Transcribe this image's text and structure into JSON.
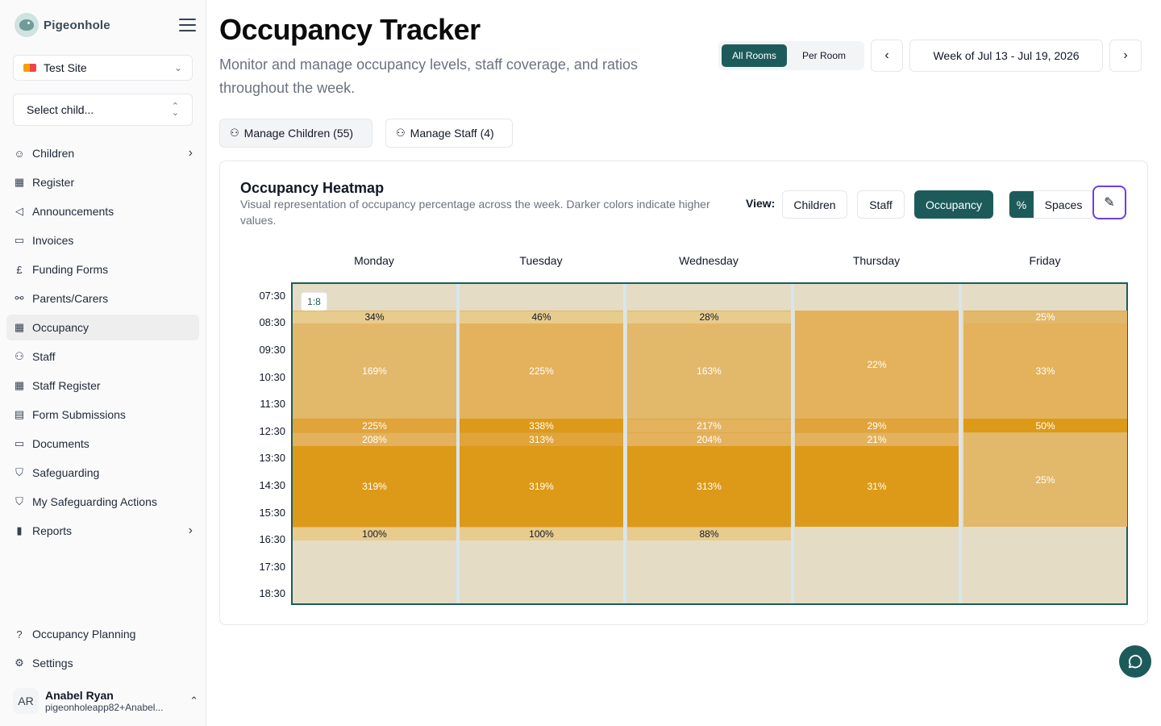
{
  "sidebar": {
    "brand": "Pigeonhole",
    "site": "Test Site",
    "child_placeholder": "Select child...",
    "items": [
      {
        "label": "Children",
        "icon": "baby-face-icon",
        "glyph": "☺",
        "arrow": true
      },
      {
        "label": "Register",
        "icon": "calendar-check-icon",
        "glyph": "▦"
      },
      {
        "label": "Announcements",
        "icon": "megaphone-icon",
        "glyph": "◁"
      },
      {
        "label": "Invoices",
        "icon": "wallet-icon",
        "glyph": "▭"
      },
      {
        "label": "Funding Forms",
        "icon": "pound-icon",
        "glyph": "£"
      },
      {
        "label": "Parents/Carers",
        "icon": "route-icon",
        "glyph": "⚯"
      },
      {
        "label": "Occupancy",
        "icon": "grid-icon",
        "glyph": "▦",
        "active": true
      },
      {
        "label": "Staff",
        "icon": "users-icon",
        "glyph": "⚇"
      },
      {
        "label": "Staff Register",
        "icon": "calendar-icon",
        "glyph": "▦"
      },
      {
        "label": "Form Submissions",
        "icon": "file-text-icon",
        "glyph": "▤"
      },
      {
        "label": "Documents",
        "icon": "folder-icon",
        "glyph": "▭"
      },
      {
        "label": "Safeguarding",
        "icon": "shield-icon",
        "glyph": "⛉"
      },
      {
        "label": "My Safeguarding Actions",
        "icon": "shield-alert-icon",
        "glyph": "⛉"
      },
      {
        "label": "Reports",
        "icon": "bar-chart-icon",
        "glyph": "▮",
        "arrow": true
      }
    ],
    "bottom_items": [
      {
        "label": "Occupancy Planning",
        "icon": "help-circle-icon",
        "glyph": "?"
      },
      {
        "label": "Settings",
        "icon": "gear-icon",
        "glyph": "⚙"
      }
    ],
    "user": {
      "initials": "AR",
      "name": "Anabel Ryan",
      "email": "pigeonholeapp82+Anabel..."
    }
  },
  "header": {
    "title": "Occupancy Tracker",
    "subtitle": "Monitor and manage occupancy levels, staff coverage, and ratios throughout the week.",
    "room_toggle": {
      "all": "All Rooms",
      "per": "Per Room",
      "selected": "All Rooms"
    },
    "week_label": "Week of Jul 13 - Jul 19, 2026",
    "prev_glyph": "‹",
    "next_glyph": "›"
  },
  "actions": {
    "manage_children": "Manage Children (55)",
    "manage_staff": "Manage Staff (4)"
  },
  "heatmap": {
    "title": "Occupancy Heatmap",
    "description": "Visual representation of occupancy percentage across the week. Darker colors indicate higher values.",
    "view_label": "View:",
    "views": [
      "Children",
      "Staff",
      "Occupancy"
    ],
    "selected_view": "Occupancy",
    "units": [
      "%",
      "Spaces"
    ],
    "selected_unit": "%",
    "ratio_badge": "1:8",
    "times": [
      "07:30",
      "08:30",
      "09:30",
      "10:30",
      "11:30",
      "12:30",
      "13:30",
      "14:30",
      "15:30",
      "16:30",
      "17:30",
      "18:30"
    ],
    "days": [
      {
        "name": "Monday",
        "cells": [
          {
            "from": "08:00",
            "to": "08:30",
            "label": "34%",
            "level": 1
          },
          {
            "from": "08:30",
            "to": "12:00",
            "label": "169%",
            "level": 2
          },
          {
            "from": "12:00",
            "to": "12:30",
            "label": "225%",
            "level": 4
          },
          {
            "from": "12:30",
            "to": "13:00",
            "label": "208%",
            "level": 3
          },
          {
            "from": "13:00",
            "to": "16:00",
            "label": "319%",
            "level": 5
          },
          {
            "from": "16:00",
            "to": "16:30",
            "label": "100%",
            "level": 1
          }
        ]
      },
      {
        "name": "Tuesday",
        "cells": [
          {
            "from": "08:00",
            "to": "08:30",
            "label": "46%",
            "level": 1
          },
          {
            "from": "08:30",
            "to": "12:00",
            "label": "225%",
            "level": 3
          },
          {
            "from": "12:00",
            "to": "12:30",
            "label": "338%",
            "level": 5
          },
          {
            "from": "12:30",
            "to": "13:00",
            "label": "313%",
            "level": 4
          },
          {
            "from": "13:00",
            "to": "16:00",
            "label": "319%",
            "level": 5
          },
          {
            "from": "16:00",
            "to": "16:30",
            "label": "100%",
            "level": 1
          }
        ]
      },
      {
        "name": "Wednesday",
        "cells": [
          {
            "from": "08:00",
            "to": "08:30",
            "label": "28%",
            "level": 1
          },
          {
            "from": "08:30",
            "to": "12:00",
            "label": "163%",
            "level": 2
          },
          {
            "from": "12:00",
            "to": "12:30",
            "label": "217%",
            "level": 3
          },
          {
            "from": "12:30",
            "to": "13:00",
            "label": "204%",
            "level": 3
          },
          {
            "from": "13:00",
            "to": "16:00",
            "label": "313%",
            "level": 5
          },
          {
            "from": "16:00",
            "to": "16:30",
            "label": "88%",
            "level": 1
          }
        ]
      },
      {
        "name": "Thursday",
        "cells": [
          {
            "from": "08:00",
            "to": "12:00",
            "label": "22%",
            "level": 3
          },
          {
            "from": "12:00",
            "to": "12:30",
            "label": "29%",
            "level": 4
          },
          {
            "from": "12:30",
            "to": "13:00",
            "label": "21%",
            "level": 3
          },
          {
            "from": "13:00",
            "to": "16:00",
            "label": "31%",
            "level": 5
          }
        ]
      },
      {
        "name": "Friday",
        "cells": [
          {
            "from": "08:00",
            "to": "08:30",
            "label": "25%",
            "level": 2
          },
          {
            "from": "08:30",
            "to": "12:00",
            "label": "33%",
            "level": 3
          },
          {
            "from": "12:00",
            "to": "12:30",
            "label": "50%",
            "level": 5
          },
          {
            "from": "12:30",
            "to": "16:00",
            "label": "25%",
            "level": 2
          }
        ]
      }
    ],
    "colors": {
      "empty": "#e4dcc4",
      "level_1": "#e8cc8e",
      "level_2": "#e2b86a",
      "level_3": "#e4b25c",
      "level_4": "#e0a43a",
      "level_5": "#dd9a18",
      "border": "#1d5b5b",
      "accent": "#1d5b5b"
    }
  }
}
